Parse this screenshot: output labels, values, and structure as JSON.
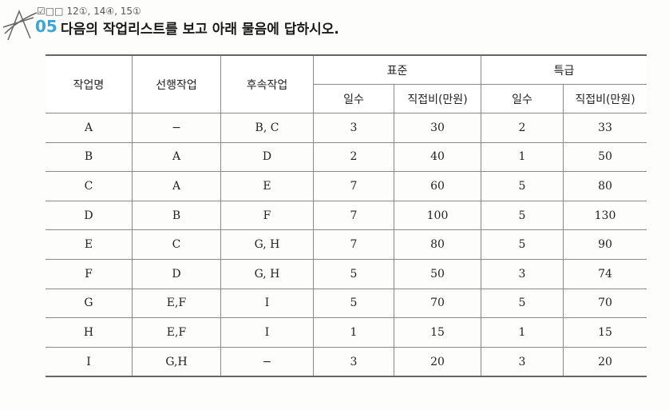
{
  "header": {
    "checkboxes": "☑□□",
    "exam_refs": "12①, 14④, 15①",
    "number": "05",
    "question": "다음의 작업리스트를 보고 아래 물음에 답하시오."
  },
  "table": {
    "headers": {
      "task": "작업명",
      "predecessor": "선행작업",
      "successor": "후속작업",
      "standard": "표준",
      "crash": "특급",
      "days": "일수",
      "cost": "직접비(만원)"
    },
    "rows": [
      [
        "A",
        "−",
        "B, C",
        "3",
        "30",
        "2",
        "33"
      ],
      [
        "B",
        "A",
        "D",
        "2",
        "40",
        "1",
        "50"
      ],
      [
        "C",
        "A",
        "E",
        "7",
        "60",
        "5",
        "80"
      ],
      [
        "D",
        "B",
        "F",
        "7",
        "100",
        "5",
        "130"
      ],
      [
        "E",
        "C",
        "G, H",
        "7",
        "80",
        "5",
        "90"
      ],
      [
        "F",
        "D",
        "G, H",
        "5",
        "50",
        "3",
        "74"
      ],
      [
        "G",
        "E,F",
        "I",
        "5",
        "70",
        "5",
        "70"
      ],
      [
        "H",
        "E,F",
        "I",
        "1",
        "15",
        "1",
        "15"
      ],
      [
        "I",
        "G,H",
        "−",
        "3",
        "20",
        "3",
        "20"
      ]
    ]
  },
  "colors": {
    "accent": "#3aa6d8"
  }
}
